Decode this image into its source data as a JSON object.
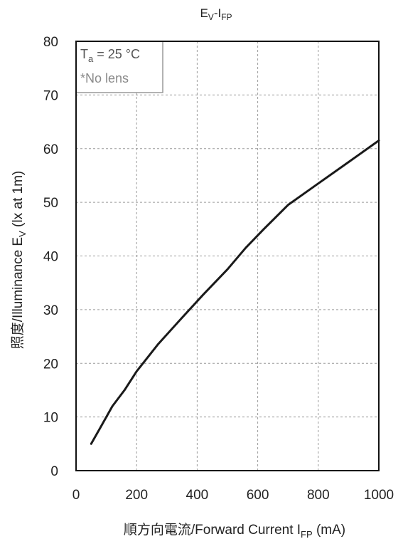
{
  "chart_data": {
    "type": "line",
    "title": {
      "main": "E",
      "sub1": "V",
      "mid": "-I",
      "sub2": "FP"
    },
    "xlabel": {
      "main": "順方向電流/Forward Current I",
      "sub": "FP",
      "unit": " (mA)"
    },
    "ylabel": {
      "main": "照度/Illuminance E",
      "sub": "V",
      "unit": " (lx at 1m)"
    },
    "xlim": [
      0,
      1000
    ],
    "ylim": [
      0,
      80
    ],
    "x_ticks": [
      "0",
      "200",
      "400",
      "600",
      "800",
      "1000"
    ],
    "y_ticks": [
      "0",
      "10",
      "20",
      "30",
      "40",
      "50",
      "60",
      "70",
      "80"
    ],
    "grid": true,
    "annotations": {
      "temp": {
        "main": "T",
        "sub": "a",
        "rest": " = 25 °C"
      },
      "lens": "*No lens"
    },
    "series": [
      {
        "x": [
          50,
          80,
          120,
          160,
          200,
          270,
          350,
          420,
          500,
          560,
          620,
          700,
          800,
          900,
          1000
        ],
        "y": [
          5,
          8,
          12,
          15,
          18.5,
          23.5,
          28.5,
          32.8,
          37.5,
          41.5,
          45,
          49.5,
          53.5,
          57.5,
          61.5
        ],
        "color": "#1a1a1a"
      }
    ]
  }
}
